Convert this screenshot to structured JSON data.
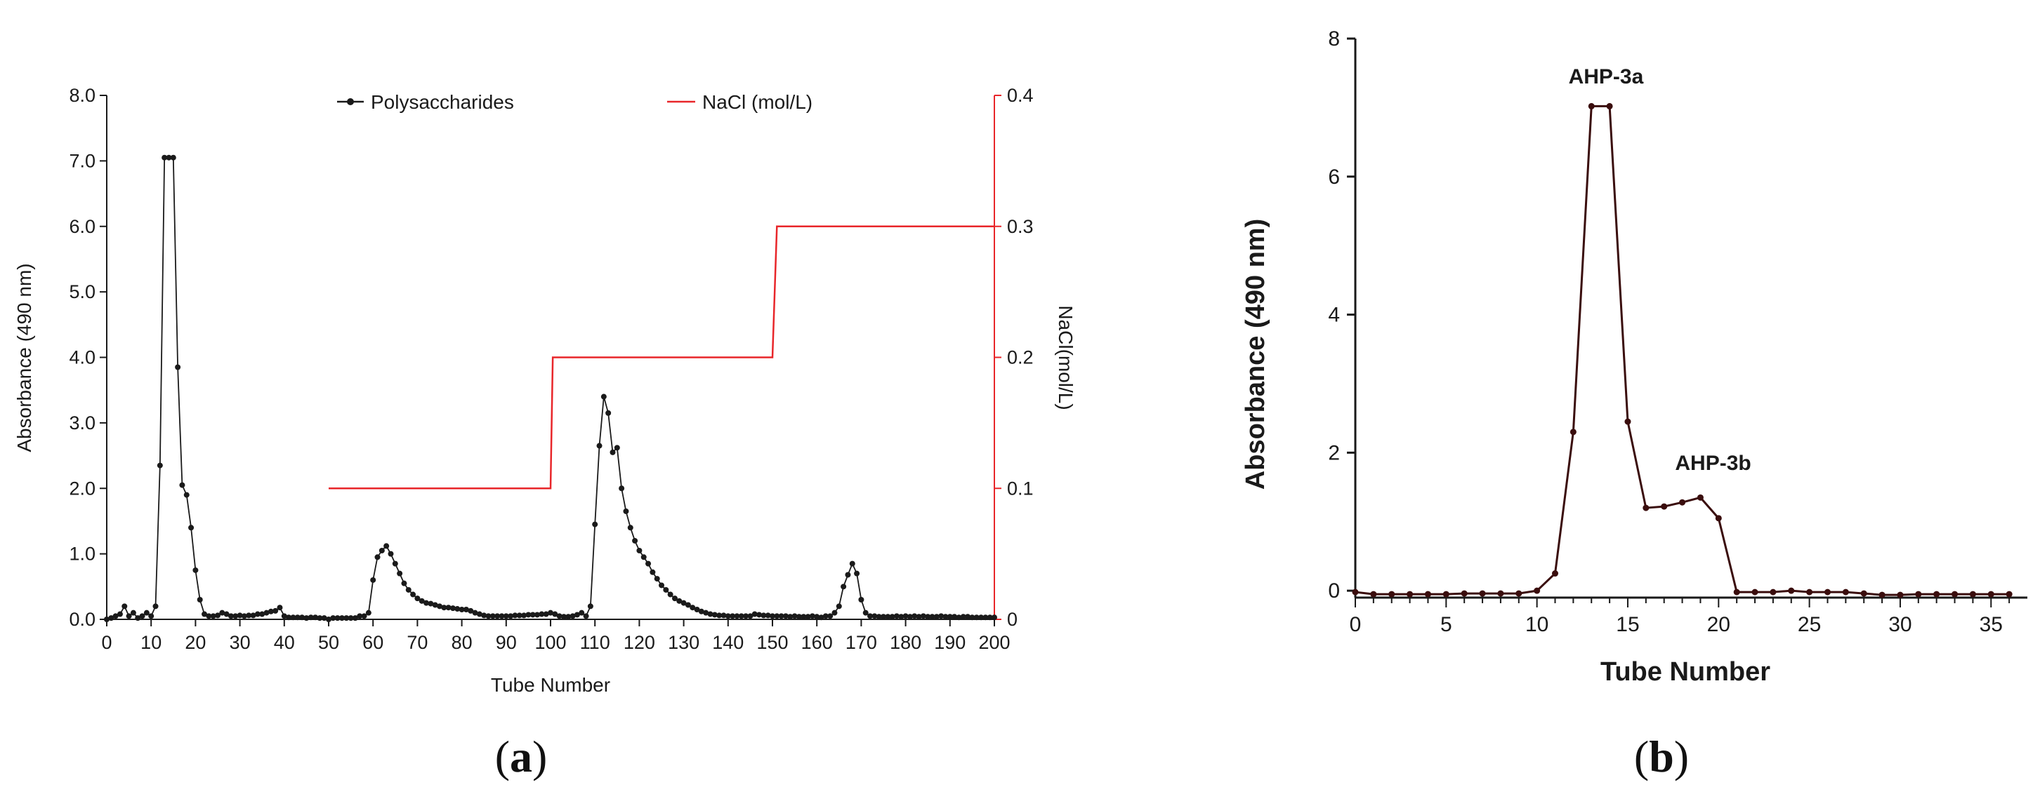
{
  "chart_data": [
    {
      "type": "line",
      "panel_label": "(a)",
      "caption": {
        "open": "(",
        "letter": "a",
        "close": ")"
      },
      "xlabel": "Tube Number",
      "ylabel": "Absorbance (490 nm)",
      "y2label": "NaCl(mol/L)",
      "xlim": [
        0,
        200
      ],
      "ylim": [
        0,
        8
      ],
      "y2lim": [
        0,
        0.4
      ],
      "xticks": [
        "0",
        "10",
        "20",
        "30",
        "40",
        "50",
        "60",
        "70",
        "80",
        "90",
        "100",
        "110",
        "120",
        "130",
        "140",
        "150",
        "160",
        "170",
        "180",
        "190",
        "200"
      ],
      "yticks": [
        "0.0",
        "1.0",
        "2.0",
        "3.0",
        "4.0",
        "5.0",
        "6.0",
        "7.0",
        "8.0"
      ],
      "y2ticks": [
        "0",
        "0.1",
        "0.2",
        "0.3",
        "0.4"
      ],
      "legend_position": "top",
      "series": [
        {
          "name": "Polysaccharides",
          "color": "#1a1a1a",
          "marker": "dot",
          "x": [
            0,
            1,
            2,
            3,
            4,
            5,
            6,
            7,
            8,
            9,
            10,
            11,
            12,
            13,
            14,
            15,
            16,
            17,
            18,
            19,
            20,
            21,
            22,
            23,
            24,
            25,
            26,
            27,
            28,
            29,
            30,
            31,
            32,
            33,
            34,
            35,
            36,
            37,
            38,
            39,
            40,
            41,
            42,
            43,
            44,
            45,
            46,
            47,
            48,
            49,
            50,
            51,
            52,
            53,
            54,
            55,
            56,
            57,
            58,
            59,
            60,
            61,
            62,
            63,
            64,
            65,
            66,
            67,
            68,
            69,
            70,
            71,
            72,
            73,
            74,
            75,
            76,
            77,
            78,
            79,
            80,
            81,
            82,
            83,
            84,
            85,
            86,
            87,
            88,
            89,
            90,
            91,
            92,
            93,
            94,
            95,
            96,
            97,
            98,
            99,
            100,
            101,
            102,
            103,
            104,
            105,
            106,
            107,
            108,
            109,
            110,
            111,
            112,
            113,
            114,
            115,
            116,
            117,
            118,
            119,
            120,
            121,
            122,
            123,
            124,
            125,
            126,
            127,
            128,
            129,
            130,
            131,
            132,
            133,
            134,
            135,
            136,
            137,
            138,
            139,
            140,
            141,
            142,
            143,
            144,
            145,
            146,
            147,
            148,
            149,
            150,
            151,
            152,
            153,
            154,
            155,
            156,
            157,
            158,
            159,
            160,
            161,
            162,
            163,
            164,
            165,
            166,
            167,
            168,
            169,
            170,
            171,
            172,
            173,
            174,
            175,
            176,
            177,
            178,
            179,
            180,
            181,
            182,
            183,
            184,
            185,
            186,
            187,
            188,
            189,
            190,
            191,
            192,
            193,
            194,
            195,
            196,
            197,
            198,
            199,
            200
          ],
          "y": [
            0.0,
            0.02,
            0.05,
            0.08,
            0.2,
            0.05,
            0.1,
            0.02,
            0.05,
            0.1,
            0.05,
            0.2,
            2.35,
            7.05,
            7.05,
            7.05,
            3.85,
            2.05,
            1.9,
            1.4,
            0.75,
            0.3,
            0.08,
            0.05,
            0.05,
            0.06,
            0.1,
            0.08,
            0.05,
            0.05,
            0.06,
            0.05,
            0.06,
            0.06,
            0.08,
            0.08,
            0.1,
            0.12,
            0.13,
            0.18,
            0.05,
            0.03,
            0.03,
            0.03,
            0.03,
            0.02,
            0.03,
            0.03,
            0.02,
            0.02,
            0.0,
            0.02,
            0.02,
            0.02,
            0.02,
            0.02,
            0.02,
            0.05,
            0.05,
            0.1,
            0.6,
            0.95,
            1.05,
            1.12,
            1.0,
            0.85,
            0.7,
            0.55,
            0.45,
            0.38,
            0.32,
            0.28,
            0.25,
            0.24,
            0.22,
            0.2,
            0.18,
            0.18,
            0.17,
            0.16,
            0.15,
            0.15,
            0.13,
            0.1,
            0.08,
            0.06,
            0.05,
            0.05,
            0.05,
            0.05,
            0.05,
            0.05,
            0.06,
            0.06,
            0.06,
            0.07,
            0.07,
            0.07,
            0.08,
            0.08,
            0.1,
            0.08,
            0.05,
            0.04,
            0.04,
            0.05,
            0.07,
            0.1,
            0.05,
            0.2,
            1.45,
            2.65,
            3.4,
            3.15,
            2.55,
            2.62,
            2.0,
            1.65,
            1.4,
            1.2,
            1.05,
            0.95,
            0.85,
            0.72,
            0.62,
            0.52,
            0.45,
            0.38,
            0.32,
            0.28,
            0.25,
            0.22,
            0.18,
            0.15,
            0.12,
            0.1,
            0.08,
            0.07,
            0.06,
            0.06,
            0.05,
            0.05,
            0.05,
            0.05,
            0.05,
            0.05,
            0.08,
            0.07,
            0.06,
            0.06,
            0.05,
            0.05,
            0.05,
            0.05,
            0.04,
            0.05,
            0.04,
            0.04,
            0.04,
            0.05,
            0.04,
            0.03,
            0.05,
            0.05,
            0.1,
            0.2,
            0.5,
            0.68,
            0.85,
            0.7,
            0.3,
            0.1,
            0.05,
            0.05,
            0.04,
            0.04,
            0.04,
            0.04,
            0.05,
            0.04,
            0.05,
            0.04,
            0.05,
            0.04,
            0.05,
            0.04,
            0.04,
            0.04,
            0.05,
            0.04,
            0.04,
            0.04,
            0.03,
            0.04,
            0.04,
            0.03,
            0.03,
            0.03,
            0.03,
            0.03,
            0.03
          ]
        },
        {
          "name": "NaCl (mol/L)",
          "color": "#e8262a",
          "axis": "right",
          "step_points": [
            [
              50,
              0.1
            ],
            [
              100,
              0.1
            ],
            [
              100.5,
              0.2
            ],
            [
              150,
              0.2
            ],
            [
              151,
              0.3
            ],
            [
              200,
              0.3
            ]
          ]
        }
      ]
    },
    {
      "type": "line",
      "panel_label": "(b)",
      "caption": {
        "open": "(",
        "letter": "b",
        "close": ")"
      },
      "xlabel": "Tube Number",
      "ylabel": "Absorbance (490 nm)",
      "xlim": [
        0,
        37
      ],
      "ylim": [
        -0.1,
        8
      ],
      "xticks": [
        "0",
        "5",
        "10",
        "15",
        "20",
        "25",
        "30",
        "35"
      ],
      "yticks": [
        "0",
        "2",
        "4",
        "6",
        "8"
      ],
      "annotations": [
        {
          "text": "AHP-3a",
          "x": 13.8,
          "y": 7.35
        },
        {
          "text": "AHP-3b",
          "x": 19.7,
          "y": 1.75
        }
      ],
      "series": [
        {
          "name": "Absorbance",
          "color": "#3a0d0d",
          "marker": "dot",
          "x": [
            0,
            1,
            2,
            3,
            4,
            5,
            6,
            7,
            8,
            9,
            10,
            11,
            12,
            13,
            14,
            15,
            16,
            17,
            18,
            19,
            20,
            21,
            22,
            23,
            24,
            25,
            26,
            27,
            28,
            29,
            30,
            31,
            32,
            33,
            34,
            35,
            36
          ],
          "y": [
            -0.02,
            -0.05,
            -0.05,
            -0.05,
            -0.05,
            -0.05,
            -0.04,
            -0.04,
            -0.04,
            -0.04,
            0.0,
            0.25,
            2.3,
            7.02,
            7.02,
            2.45,
            1.2,
            1.22,
            1.28,
            1.35,
            1.05,
            -0.02,
            -0.02,
            -0.02,
            0.0,
            -0.02,
            -0.02,
            -0.02,
            -0.04,
            -0.06,
            -0.06,
            -0.05,
            -0.05,
            -0.05,
            -0.05,
            -0.05,
            -0.05
          ]
        }
      ]
    }
  ]
}
